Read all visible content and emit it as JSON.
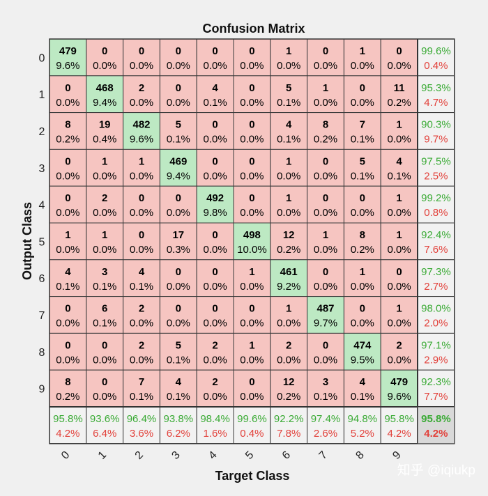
{
  "chart_data": {
    "type": "heatmap",
    "title": "Confusion Matrix",
    "xlabel": "Target Class",
    "ylabel": "Output Class",
    "x_tick_labels": [
      "0",
      "1",
      "2",
      "3",
      "4",
      "5",
      "6",
      "7",
      "8",
      "9"
    ],
    "y_tick_labels": [
      "0",
      "1",
      "2",
      "3",
      "4",
      "5",
      "6",
      "7",
      "8",
      "9"
    ],
    "counts": [
      [
        479,
        0,
        0,
        0,
        0,
        0,
        1,
        0,
        1,
        0
      ],
      [
        0,
        468,
        2,
        0,
        4,
        0,
        5,
        1,
        0,
        11
      ],
      [
        8,
        19,
        482,
        5,
        0,
        0,
        4,
        8,
        7,
        1
      ],
      [
        0,
        1,
        1,
        469,
        0,
        0,
        1,
        0,
        5,
        4
      ],
      [
        0,
        2,
        0,
        0,
        492,
        0,
        1,
        0,
        0,
        1
      ],
      [
        1,
        1,
        0,
        17,
        0,
        498,
        12,
        1,
        8,
        1
      ],
      [
        4,
        3,
        4,
        0,
        0,
        1,
        461,
        0,
        1,
        0
      ],
      [
        0,
        6,
        2,
        0,
        0,
        0,
        1,
        487,
        0,
        1
      ],
      [
        0,
        0,
        2,
        5,
        2,
        1,
        2,
        0,
        474,
        2
      ],
      [
        8,
        0,
        7,
        4,
        2,
        0,
        12,
        3,
        4,
        479
      ]
    ],
    "percents": [
      [
        "9.6%",
        "0.0%",
        "0.0%",
        "0.0%",
        "0.0%",
        "0.0%",
        "0.0%",
        "0.0%",
        "0.0%",
        "0.0%"
      ],
      [
        "0.0%",
        "9.4%",
        "0.0%",
        "0.0%",
        "0.1%",
        "0.0%",
        "0.1%",
        "0.0%",
        "0.0%",
        "0.2%"
      ],
      [
        "0.2%",
        "0.4%",
        "9.6%",
        "0.1%",
        "0.0%",
        "0.0%",
        "0.1%",
        "0.2%",
        "0.1%",
        "0.0%"
      ],
      [
        "0.0%",
        "0.0%",
        "0.0%",
        "9.4%",
        "0.0%",
        "0.0%",
        "0.0%",
        "0.0%",
        "0.1%",
        "0.1%"
      ],
      [
        "0.0%",
        "0.0%",
        "0.0%",
        "0.0%",
        "9.8%",
        "0.0%",
        "0.0%",
        "0.0%",
        "0.0%",
        "0.0%"
      ],
      [
        "0.0%",
        "0.0%",
        "0.0%",
        "0.3%",
        "0.0%",
        "10.0%",
        "0.2%",
        "0.0%",
        "0.2%",
        "0.0%"
      ],
      [
        "0.1%",
        "0.1%",
        "0.1%",
        "0.0%",
        "0.0%",
        "0.0%",
        "9.2%",
        "0.0%",
        "0.0%",
        "0.0%"
      ],
      [
        "0.0%",
        "0.1%",
        "0.0%",
        "0.0%",
        "0.0%",
        "0.0%",
        "0.0%",
        "9.7%",
        "0.0%",
        "0.0%"
      ],
      [
        "0.0%",
        "0.0%",
        "0.0%",
        "0.1%",
        "0.0%",
        "0.0%",
        "0.0%",
        "0.0%",
        "9.5%",
        "0.0%"
      ],
      [
        "0.2%",
        "0.0%",
        "0.1%",
        "0.1%",
        "0.0%",
        "0.0%",
        "0.2%",
        "0.1%",
        "0.1%",
        "9.6%"
      ]
    ],
    "row_summary": [
      [
        "99.6%",
        "0.4%"
      ],
      [
        "95.3%",
        "4.7%"
      ],
      [
        "90.3%",
        "9.7%"
      ],
      [
        "97.5%",
        "2.5%"
      ],
      [
        "99.2%",
        "0.8%"
      ],
      [
        "92.4%",
        "7.6%"
      ],
      [
        "97.3%",
        "2.7%"
      ],
      [
        "98.0%",
        "2.0%"
      ],
      [
        "97.1%",
        "2.9%"
      ],
      [
        "92.3%",
        "7.7%"
      ]
    ],
    "column_summary": [
      [
        "95.8%",
        "4.2%"
      ],
      [
        "93.6%",
        "6.4%"
      ],
      [
        "96.4%",
        "3.6%"
      ],
      [
        "93.8%",
        "6.2%"
      ],
      [
        "98.4%",
        "1.6%"
      ],
      [
        "99.6%",
        "0.4%"
      ],
      [
        "92.2%",
        "7.8%"
      ],
      [
        "97.4%",
        "2.6%"
      ],
      [
        "94.8%",
        "5.2%"
      ],
      [
        "95.8%",
        "4.2%"
      ]
    ],
    "overall": [
      "95.8%",
      "4.2%"
    ],
    "grid": true,
    "colors": {
      "diagonal": "#bde9c3",
      "off_diagonal": "#f6c5c1",
      "summary": "#f2f2f2",
      "overall": "#d9d9d9",
      "correct_text": "#3aaa35",
      "error_text": "#e2413b",
      "cell_text": "#000000",
      "background": "#f0f0f0"
    }
  },
  "watermark": "知乎 @iqiukp"
}
